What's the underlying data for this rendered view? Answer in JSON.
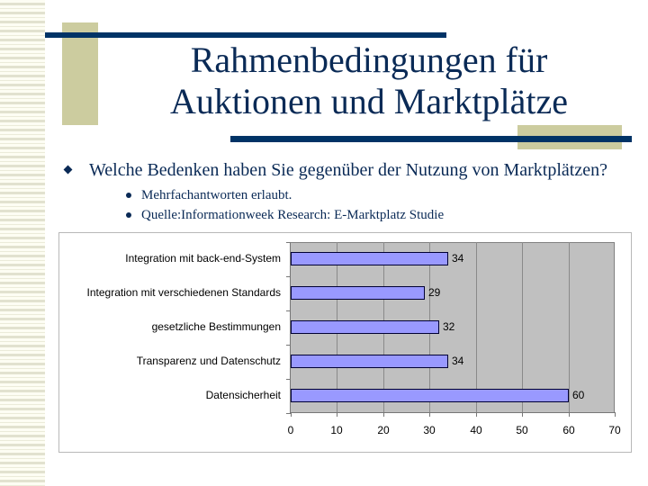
{
  "slide": {
    "title_line1": "Rahmenbedingungen für",
    "title_line2": "Auktionen und Marktplätze",
    "bullet_main": "Welche Bedenken haben Sie gegenüber der Nutzung von Marktplätzen?",
    "sub_bullets": [
      "Mehrfachantworten erlaubt.",
      "Quelle:Informationweek Research: E-Marktplatz Studie"
    ],
    "colors": {
      "navy": "#003366",
      "khaki": "#cccc9f",
      "bar_fill": "#9999ff",
      "plot_bg": "#c0c0c0"
    }
  },
  "chart_data": {
    "type": "bar",
    "orientation": "horizontal",
    "title": "",
    "xlabel": "",
    "ylabel": "",
    "categories": [
      "Integration mit back-end-System",
      "Integration mit verschiedenen Standards",
      "gesetzliche Bestimmungen",
      "Transparenz und Datenschutz",
      "Datensicherheit"
    ],
    "values": [
      34,
      29,
      32,
      34,
      60
    ],
    "data_labels": [
      "34",
      "29",
      "32",
      "34",
      "60"
    ],
    "xlim": [
      0,
      70
    ],
    "x_ticks": [
      "0",
      "10",
      "20",
      "30",
      "40",
      "50",
      "60",
      "70"
    ],
    "grid": true,
    "legend": null
  }
}
